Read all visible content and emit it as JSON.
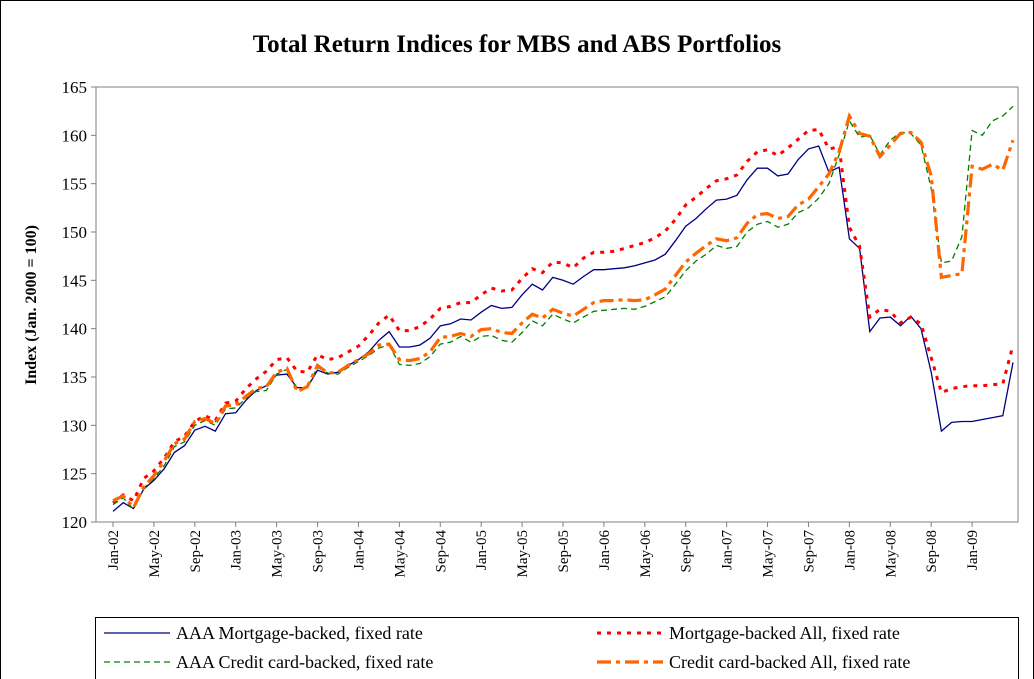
{
  "chart_data": {
    "type": "line",
    "title": "Total Return Indices for MBS and ABS Portfolios",
    "y_label": "Index (Jan. 2000 = 100)",
    "categories": [
      "Jan-02",
      null,
      null,
      null,
      "May-02",
      null,
      null,
      null,
      "Sep-02",
      null,
      null,
      null,
      "Jan-03",
      null,
      null,
      null,
      "May-03",
      null,
      null,
      null,
      "Sep-03",
      null,
      null,
      null,
      "Jan-04",
      null,
      null,
      null,
      "May-04",
      null,
      null,
      null,
      "Sep-04",
      null,
      null,
      null,
      "Jan-05",
      null,
      null,
      null,
      "May-05",
      null,
      null,
      null,
      "Sep-05",
      null,
      null,
      null,
      "Jan-06",
      null,
      null,
      null,
      "May-06",
      null,
      null,
      null,
      "Sep-06",
      null,
      null,
      null,
      "Jan-07",
      null,
      null,
      null,
      "May-07",
      null,
      null,
      null,
      "Sep-07",
      null,
      null,
      null,
      "Jan-08",
      null,
      null,
      null,
      "May-08",
      null,
      null,
      null,
      "Sep-08",
      null,
      null,
      null,
      "Jan-09",
      null,
      null,
      null,
      null
    ],
    "ylim": [
      120,
      165
    ],
    "yticks": [
      120,
      125,
      130,
      135,
      140,
      145,
      150,
      155,
      160,
      165
    ],
    "grid": false,
    "legend": "bottom",
    "series": [
      {
        "name": "AAA Mortgage-backed, fixed rate",
        "color": "#000080",
        "style": "solid",
        "values": [
          121.1,
          122.0,
          121.4,
          123.4,
          124.3,
          125.5,
          127.2,
          127.9,
          129.5,
          129.9,
          129.4,
          131.2,
          131.3,
          132.6,
          133.6,
          134.1,
          135.2,
          135.3,
          133.9,
          133.9,
          135.7,
          135.3,
          135.5,
          136.2,
          136.8,
          137.6,
          138.8,
          139.7,
          138.1,
          138.1,
          138.3,
          139.0,
          140.3,
          140.5,
          141.0,
          140.9,
          141.7,
          142.4,
          142.1,
          142.2,
          143.5,
          144.6,
          144.0,
          145.3,
          145.0,
          144.6,
          145.4,
          146.1,
          146.1,
          146.2,
          146.3,
          146.5,
          146.8,
          147.1,
          147.7,
          149.1,
          150.6,
          151.4,
          152.4,
          153.3,
          153.4,
          153.8,
          155.4,
          156.6,
          156.6,
          155.8,
          156.0,
          157.5,
          158.6,
          158.9,
          156.2,
          156.7,
          149.3,
          148.3,
          139.7,
          141.1,
          141.2,
          140.3,
          141.3,
          140.0,
          135.5,
          129.4,
          130.3,
          130.4,
          130.4,
          130.6,
          130.8,
          131.0,
          136.5
        ]
      },
      {
        "name": "Mortgage-backed All, fixed rate",
        "color": "#ff0000",
        "style": "dotted",
        "values": [
          122.0,
          122.8,
          122.2,
          124.5,
          125.3,
          126.6,
          128.3,
          128.9,
          130.4,
          131.0,
          130.5,
          132.3,
          132.5,
          133.8,
          134.8,
          135.6,
          136.8,
          137.0,
          135.6,
          135.5,
          137.3,
          136.8,
          137.0,
          137.6,
          138.2,
          139.3,
          140.6,
          141.4,
          139.8,
          139.8,
          140.2,
          141.0,
          142.1,
          142.3,
          142.7,
          142.7,
          143.5,
          144.2,
          143.9,
          144.0,
          145.2,
          146.2,
          145.8,
          146.9,
          146.8,
          146.3,
          147.3,
          147.9,
          147.9,
          148.0,
          148.3,
          148.6,
          148.9,
          149.4,
          150.1,
          151.3,
          152.8,
          153.6,
          154.5,
          155.3,
          155.5,
          155.9,
          157.3,
          158.3,
          158.5,
          157.9,
          158.7,
          159.6,
          160.5,
          160.6,
          158.6,
          158.8,
          150.5,
          148.5,
          141.2,
          142.0,
          141.8,
          140.6,
          141.2,
          140.5,
          137.0,
          133.4,
          133.8,
          134.0,
          134.1,
          134.1,
          134.2,
          134.3,
          138.3
        ]
      },
      {
        "name": "AAA Credit card-backed, fixed rate",
        "color": "#008000",
        "style": "dashed",
        "values": [
          121.8,
          122.5,
          121.3,
          123.5,
          124.5,
          125.8,
          127.8,
          128.3,
          130.0,
          130.5,
          130.0,
          131.7,
          131.8,
          132.8,
          133.5,
          133.6,
          135.3,
          135.8,
          133.6,
          133.9,
          136.0,
          135.4,
          135.3,
          136.0,
          136.6,
          137.2,
          138.0,
          138.3,
          136.3,
          136.2,
          136.4,
          137.1,
          138.4,
          138.6,
          139.2,
          138.6,
          139.2,
          139.3,
          138.8,
          138.6,
          139.6,
          140.8,
          140.3,
          141.5,
          141.0,
          140.6,
          141.2,
          141.8,
          141.9,
          142.0,
          142.1,
          142.0,
          142.3,
          142.8,
          143.3,
          144.6,
          146.0,
          147.0,
          147.7,
          148.6,
          148.3,
          148.5,
          150.0,
          150.8,
          151.1,
          150.5,
          150.8,
          152.0,
          152.5,
          153.5,
          155.0,
          158.0,
          161.5,
          159.8,
          160.0,
          158.0,
          159.5,
          160.3,
          160.2,
          159.0,
          154.5,
          146.8,
          147.0,
          149.5,
          160.5,
          160.0,
          161.5,
          162.0,
          163.0
        ]
      },
      {
        "name": "Credit card-backed All, fixed rate",
        "color": "#ff6600",
        "style": "dashdot",
        "values": [
          122.2,
          122.7,
          121.5,
          123.6,
          124.8,
          126.3,
          128.1,
          128.6,
          130.4,
          130.7,
          130.2,
          132.0,
          132.1,
          133.0,
          133.8,
          134.0,
          135.5,
          135.9,
          133.5,
          134.0,
          136.2,
          135.4,
          135.5,
          136.2,
          136.8,
          137.4,
          138.3,
          138.4,
          136.8,
          136.7,
          136.9,
          137.6,
          139.1,
          139.2,
          139.5,
          139.2,
          139.9,
          140.0,
          139.6,
          139.5,
          140.6,
          141.5,
          141.1,
          142.0,
          141.6,
          141.3,
          142.0,
          142.7,
          142.9,
          142.9,
          143.0,
          142.9,
          143.0,
          143.5,
          144.1,
          145.5,
          146.9,
          147.8,
          148.6,
          149.3,
          149.1,
          149.4,
          150.9,
          151.8,
          151.9,
          151.4,
          151.6,
          152.8,
          153.4,
          154.7,
          156.0,
          158.3,
          162.0,
          160.2,
          159.9,
          157.8,
          159.0,
          160.2,
          160.3,
          159.3,
          155.8,
          145.3,
          145.5,
          145.7,
          156.8,
          156.5,
          157.0,
          156.4,
          159.5
        ]
      }
    ]
  }
}
